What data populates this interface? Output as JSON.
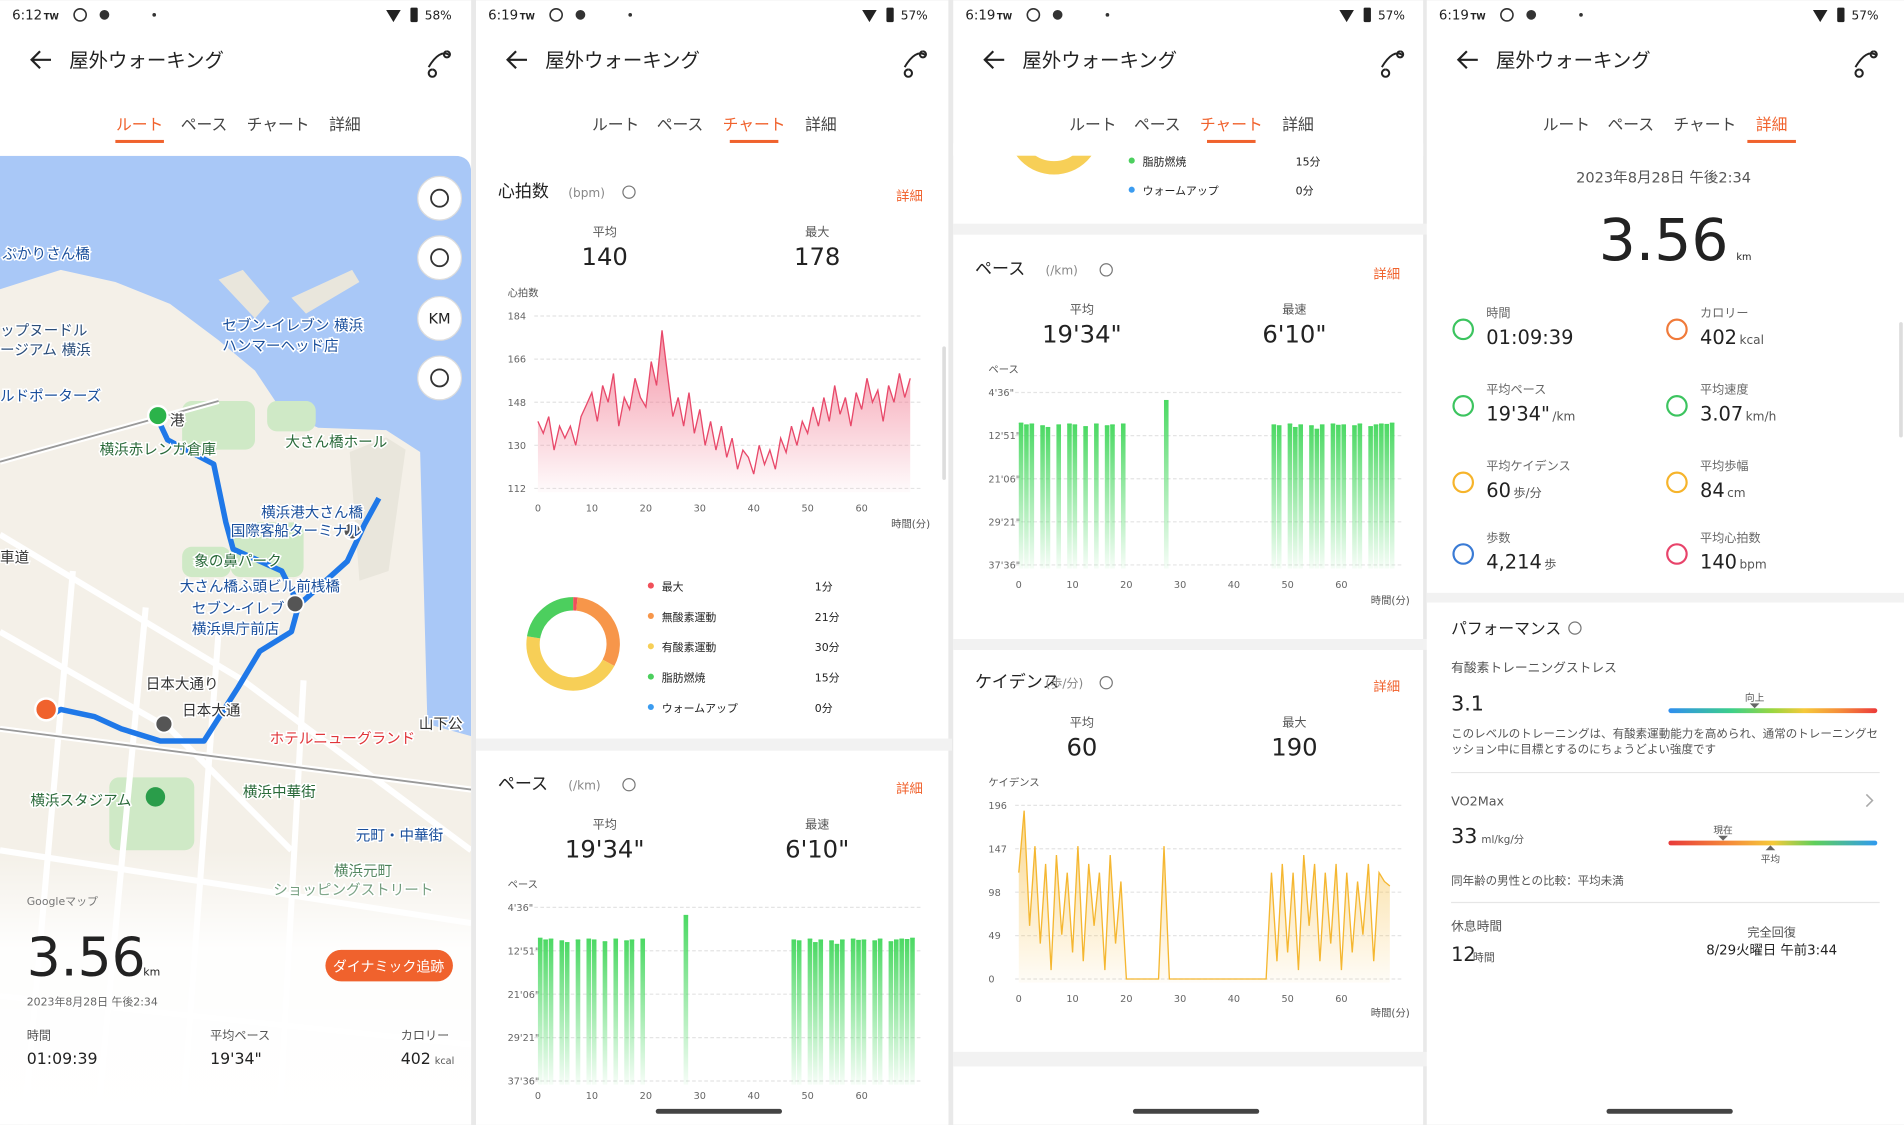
{
  "screens": [
    {
      "status": {
        "time": "6:12",
        "carrier": "TW",
        "battery": "58%"
      },
      "header": {
        "title": "屋外ウォーキング"
      },
      "tabs": [
        "ルート",
        "ペース",
        "チャート",
        "詳細"
      ],
      "active_tab": 0,
      "map": {
        "unit_button": "KM",
        "credit": "Googleマップ",
        "labels": [
          "ぷかりさん橋",
          "セブン-イレブン 横浜",
          "ハンマーヘッド店",
          "ップヌードル",
          "ージアム 横浜",
          "ルドポーターズ",
          "港",
          "横浜赤レンガ倉庫",
          "大さん橋ホール",
          "横浜港大さん橋",
          "国際客船ターミナル",
          "象の鼻パーク",
          "大さん橋ふ頭ビル前桟橋",
          "セブン-イレブ",
          "横浜県庁前店",
          "日本大通り",
          "日本大通",
          "ホテルニューグランド",
          "山下公",
          "横浜スタジアム",
          "横浜中華街",
          "元町・中華街",
          "横浜元町",
          "ショッピングストリート",
          "車道"
        ]
      },
      "summary": {
        "distance": "3.56",
        "unit": "km",
        "date": "2023年8月28日 午後2:34",
        "button": "ダイナミック追跡",
        "stats": [
          {
            "label": "時間",
            "value": "01:09:39"
          },
          {
            "label": "平均ペース",
            "value": "19'34\""
          },
          {
            "label": "カロリー",
            "value": "402",
            "unit": "kcal"
          }
        ]
      }
    },
    {
      "status": {
        "time": "6:19",
        "carrier": "TW",
        "battery": "57%"
      },
      "header": {
        "title": "屋外ウォーキング"
      },
      "tabs": [
        "ルート",
        "ペース",
        "チャート",
        "詳細"
      ],
      "active_tab": 2,
      "heart": {
        "title": "心拍数",
        "unit": "(bpm)",
        "link": "詳細",
        "stats": [
          {
            "label": "平均",
            "value": "140"
          },
          {
            "label": "最大",
            "value": "178"
          }
        ]
      },
      "pace": {
        "title": "ペース",
        "unit": "(/km)",
        "link": "詳細",
        "stats": [
          {
            "label": "平均",
            "value": "19'34\""
          },
          {
            "label": "最速",
            "value": "6'10\""
          }
        ]
      }
    },
    {
      "status": {
        "time": "6:19",
        "carrier": "TW",
        "battery": "57%"
      },
      "header": {
        "title": "屋外ウォーキング"
      },
      "tabs": [
        "ルート",
        "ペース",
        "チャート",
        "詳細"
      ],
      "active_tab": 2,
      "pace": {
        "title": "ペース",
        "unit": "(/km)",
        "link": "詳細",
        "stats": [
          {
            "label": "平均",
            "value": "19'34\""
          },
          {
            "label": "最速",
            "value": "6'10\""
          }
        ]
      },
      "cadence": {
        "title": "ケイデンス",
        "unit": "(歩/分)",
        "link": "詳細",
        "stats": [
          {
            "label": "平均",
            "value": "60"
          },
          {
            "label": "最大",
            "value": "190"
          }
        ]
      }
    },
    {
      "status": {
        "time": "6:19",
        "carrier": "TW",
        "battery": "57%"
      },
      "header": {
        "title": "屋外ウォーキング"
      },
      "tabs": [
        "ルート",
        "ペース",
        "チャート",
        "詳細"
      ],
      "active_tab": 3,
      "detail": {
        "date": "2023年8月28日 午後2:34",
        "distance": "3.56",
        "unit": "km",
        "stats": [
          {
            "label": "時間",
            "value": "01:09:39"
          },
          {
            "label": "カロリー",
            "value": "402",
            "unit": "kcal"
          },
          {
            "label": "平均ペース",
            "value": "19'34\"",
            "unit": "/km"
          },
          {
            "label": "平均速度",
            "value": "3.07",
            "unit": "km/h"
          },
          {
            "label": "平均ケイデンス",
            "value": "60",
            "unit": "歩/分"
          },
          {
            "label": "平均歩幅",
            "value": "84",
            "unit": "cm"
          },
          {
            "label": "歩数",
            "value": "4,214",
            "unit": "歩"
          },
          {
            "label": "平均心拍数",
            "value": "140",
            "unit": "bpm"
          }
        ],
        "performance": {
          "title": "パフォーマンス",
          "training": {
            "label": "有酸素トレーニングストレス",
            "value": "3.1",
            "marker": "向上",
            "description": "このレベルのトレーニングは、有酸素運動能力を高められ、通常のトレーニングセッション中に目標とするのにちょうどよい強度です"
          },
          "vo2max": {
            "label": "VO2Max",
            "value": "33",
            "unit": "ml/kg/分",
            "marker": "現在",
            "average": "平均",
            "comparison": "同年齢の男性との比較：平均未満"
          },
          "rest": {
            "label": "休息時間",
            "value": "12",
            "unit": "時間",
            "recovery_label": "完全回復",
            "recovery": "8/29火曜日 午前3:44"
          }
        }
      }
    }
  ],
  "charts": {
    "heart_rate": {
      "type": "area",
      "y_label": "心拍数",
      "x_label": "時間(分)",
      "color": "#e8496a",
      "x": [
        0,
        1,
        2,
        3,
        4,
        5,
        6,
        7,
        8,
        9,
        10,
        11,
        12,
        13,
        14,
        15,
        16,
        17,
        18,
        19,
        20,
        21,
        22,
        23,
        24,
        25,
        26,
        27,
        28,
        29,
        30,
        31,
        32,
        33,
        34,
        35,
        36,
        37,
        38,
        39,
        40,
        41,
        42,
        43,
        44,
        45,
        46,
        47,
        48,
        49,
        50,
        51,
        52,
        53,
        54,
        55,
        56,
        57,
        58,
        59,
        60,
        61,
        62,
        63,
        64,
        65,
        66,
        67,
        68,
        69
      ],
      "values": [
        140,
        135,
        142,
        128,
        138,
        133,
        138,
        130,
        142,
        147,
        152,
        140,
        155,
        148,
        160,
        138,
        150,
        145,
        158,
        150,
        146,
        165,
        155,
        178,
        160,
        142,
        150,
        138,
        152,
        135,
        145,
        130,
        140,
        128,
        138,
        125,
        133,
        120,
        128,
        125,
        118,
        130,
        122,
        128,
        120,
        133,
        127,
        138,
        130,
        140,
        135,
        146,
        138,
        150,
        140,
        155,
        143,
        150,
        138,
        152,
        145,
        158,
        148,
        153,
        140,
        155,
        148,
        160,
        150,
        158
      ],
      "xlim": [
        0,
        70
      ],
      "ylim": [
        112,
        184
      ],
      "xticks": [
        0,
        10,
        20,
        30,
        40,
        50,
        60
      ],
      "yticks": [
        184,
        166,
        148,
        130,
        112
      ],
      "grid": true
    },
    "heart_zones": {
      "type": "donut",
      "series": [
        {
          "name": "最大",
          "value": 1,
          "label": "1分",
          "color": "#f0505a"
        },
        {
          "name": "無酸素運動",
          "value": 21,
          "label": "21分",
          "color": "#f7964a"
        },
        {
          "name": "有酸素運動",
          "value": 30,
          "label": "30分",
          "color": "#f7cf57"
        },
        {
          "name": "脂肪燃焼",
          "value": 15,
          "label": "15分",
          "color": "#4ccf5e"
        },
        {
          "name": "ウォームアップ",
          "value": 0,
          "label": "0分",
          "color": "#3b9cf0"
        }
      ]
    },
    "pace": {
      "type": "bar",
      "y_label": "ペース",
      "x_label": "時間(分)",
      "color": "#4cd964",
      "y_inverted": true,
      "x": [
        0,
        1,
        2,
        3,
        4,
        5,
        6,
        7,
        8,
        9,
        10,
        11,
        12,
        13,
        14,
        15,
        16,
        17,
        18,
        19,
        20,
        21,
        22,
        23,
        24,
        25,
        26,
        27,
        28,
        29,
        30,
        31,
        32,
        33,
        34,
        35,
        36,
        37,
        38,
        39,
        40,
        41,
        42,
        43,
        44,
        45,
        46,
        47,
        48,
        49,
        50,
        51,
        52,
        53,
        54,
        55,
        56,
        57,
        58,
        59,
        60,
        61,
        62,
        63,
        64,
        65,
        66,
        67,
        68,
        69
      ],
      "values": [
        630,
        650,
        640,
        null,
        660,
        680,
        null,
        650,
        null,
        640,
        650,
        null,
        670,
        null,
        640,
        null,
        660,
        650,
        null,
        640,
        null,
        null,
        null,
        null,
        null,
        null,
        null,
        370,
        null,
        null,
        null,
        null,
        null,
        null,
        null,
        null,
        null,
        null,
        null,
        null,
        null,
        null,
        null,
        null,
        null,
        null,
        null,
        650,
        660,
        null,
        640,
        680,
        650,
        null,
        660,
        700,
        650,
        null,
        640,
        655,
        650,
        null,
        660,
        640,
        null,
        670,
        650,
        640,
        645,
        630
      ],
      "xlim": [
        0,
        70
      ],
      "ylim": [
        276,
        2256
      ],
      "xticks": [
        0,
        10,
        20,
        30,
        40,
        50,
        60
      ],
      "yticks": [
        {
          "value": 276,
          "label": "4'36\""
        },
        {
          "value": 771,
          "label": "12'51\""
        },
        {
          "value": 1266,
          "label": "21'06\""
        },
        {
          "value": 1761,
          "label": "29'21\""
        },
        {
          "value": 2256,
          "label": "37'36\""
        }
      ],
      "grid": true
    },
    "cadence": {
      "type": "area",
      "y_label": "ケイデンス",
      "x_label": "時間(分)",
      "color": "#f5b731",
      "x": [
        0,
        1,
        2,
        3,
        4,
        5,
        6,
        7,
        8,
        9,
        10,
        11,
        12,
        13,
        14,
        15,
        16,
        17,
        18,
        19,
        20,
        21,
        22,
        23,
        24,
        25,
        26,
        27,
        28,
        29,
        30,
        31,
        32,
        33,
        34,
        35,
        36,
        37,
        38,
        39,
        40,
        41,
        42,
        43,
        44,
        45,
        46,
        47,
        48,
        49,
        50,
        51,
        52,
        53,
        54,
        55,
        56,
        57,
        58,
        59,
        60,
        61,
        62,
        63,
        64,
        65,
        66,
        67,
        68,
        69
      ],
      "values": [
        120,
        190,
        60,
        150,
        40,
        130,
        10,
        140,
        50,
        120,
        30,
        150,
        20,
        130,
        60,
        120,
        10,
        140,
        40,
        110,
        0,
        0,
        0,
        0,
        0,
        0,
        0,
        150,
        0,
        0,
        0,
        0,
        0,
        0,
        0,
        0,
        0,
        0,
        0,
        0,
        0,
        0,
        0,
        0,
        0,
        0,
        0,
        120,
        20,
        130,
        30,
        120,
        10,
        140,
        60,
        130,
        20,
        120,
        40,
        130,
        10,
        120,
        30,
        110,
        50,
        130,
        20,
        120,
        110,
        105
      ],
      "xlim": [
        0,
        70
      ],
      "ylim": [
        0,
        196
      ],
      "xticks": [
        0,
        10,
        20,
        30,
        40,
        50,
        60
      ],
      "yticks": [
        196,
        147,
        98,
        49,
        0
      ],
      "grid": true
    }
  }
}
